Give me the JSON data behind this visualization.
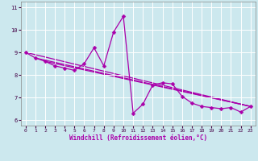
{
  "bg_color": "#cce8ee",
  "grid_color": "#ffffff",
  "line_color": "#aa00aa",
  "xlabel": "Windchill (Refroidissement éolien,°C)",
  "ylabel_ticks": [
    6,
    7,
    8,
    9,
    10,
    11
  ],
  "xlabel_ticks": [
    0,
    1,
    2,
    3,
    4,
    5,
    6,
    7,
    8,
    9,
    10,
    11,
    12,
    13,
    14,
    15,
    16,
    17,
    18,
    19,
    20,
    21,
    22,
    23
  ],
  "xlim": [
    -0.5,
    23.5
  ],
  "ylim": [
    5.75,
    11.25
  ],
  "series1_x": [
    0,
    1,
    2,
    3,
    4,
    5,
    6,
    7,
    8,
    9,
    10,
    11,
    12,
    13,
    14,
    15,
    16,
    17,
    18,
    19,
    20,
    21,
    22,
    23
  ],
  "series1_y": [
    9.0,
    8.75,
    8.6,
    8.4,
    8.3,
    8.2,
    8.5,
    9.2,
    8.4,
    9.9,
    10.6,
    6.3,
    6.7,
    7.55,
    7.65,
    7.6,
    7.05,
    6.75,
    6.6,
    6.55,
    6.5,
    6.55,
    6.35,
    6.6
  ],
  "trend_lines": [
    {
      "x": [
        0,
        23
      ],
      "y": [
        9.0,
        6.6
      ]
    },
    {
      "x": [
        1,
        23
      ],
      "y": [
        8.75,
        6.6
      ]
    },
    {
      "x": [
        2,
        23
      ],
      "y": [
        8.6,
        6.6
      ]
    }
  ],
  "xlabel_fontsize": 5.5,
  "tick_fontsize": 5.0,
  "linewidth": 0.9,
  "markersize": 2.5
}
